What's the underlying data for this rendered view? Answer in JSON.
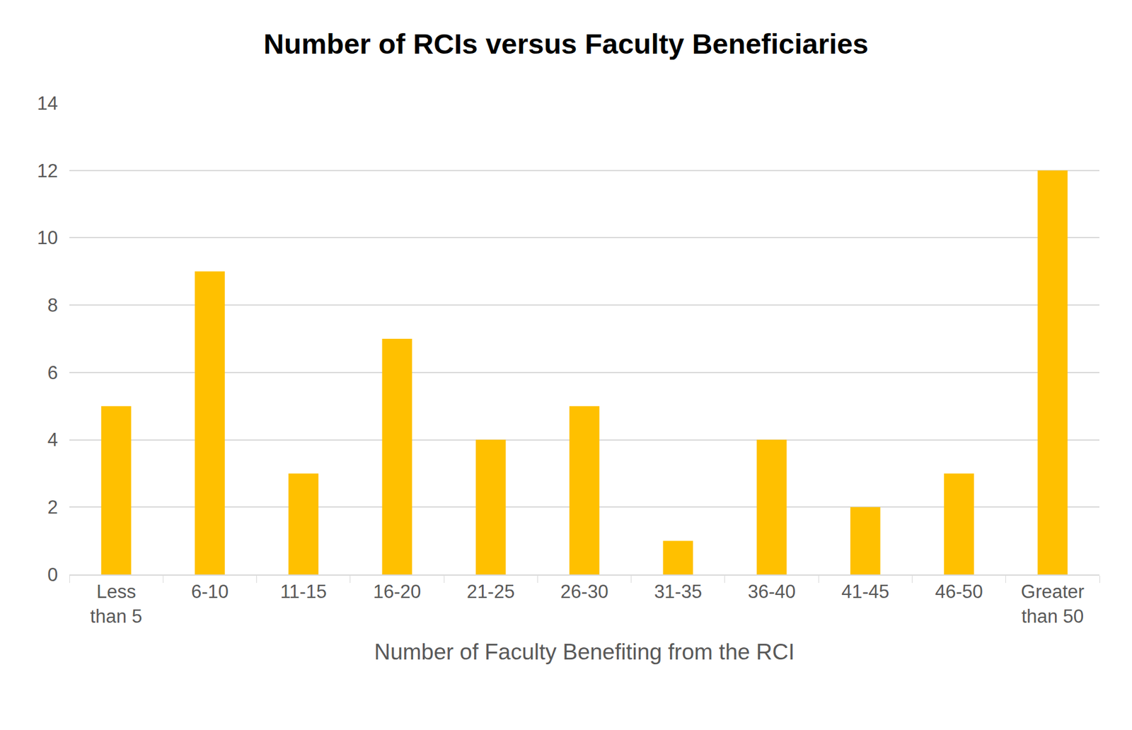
{
  "chart_data": {
    "type": "bar",
    "title": "Number of RCIs versus Faculty Beneficiaries",
    "x_label": "Number of Faculty Benefiting from the RCI",
    "categories": [
      "Less than 5",
      "6-10",
      "11-15",
      "16-20",
      "21-25",
      "26-30",
      "31-35",
      "36-40",
      "41-45",
      "46-50",
      "Greater than 50"
    ],
    "values": [
      5,
      9,
      3,
      7,
      4,
      5,
      1,
      4,
      2,
      3,
      12
    ],
    "color": "#FFC000",
    "ylim": [
      0,
      14
    ],
    "yticks": [
      0,
      2,
      4,
      6,
      8,
      10,
      12,
      14
    ],
    "grid": true
  }
}
